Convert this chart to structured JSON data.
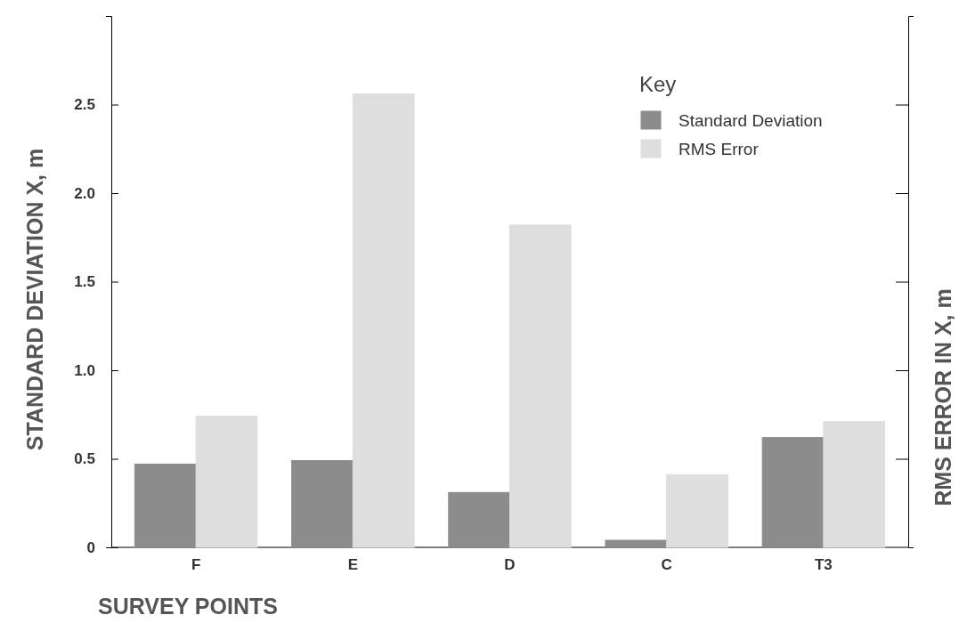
{
  "chart_data": {
    "type": "bar",
    "xlabel": "SURVEY POINTS",
    "ylabel": "STANDARD DEVIATION X, m",
    "y2label": "RMS ERROR IN X, m",
    "legend_title": "Key",
    "legend": "top right",
    "categories": [
      "F",
      "E",
      "D",
      "C",
      "T3"
    ],
    "series": [
      {
        "name": "Standard Deviation",
        "color": "#8c8c8c",
        "values": [
          0.47,
          0.49,
          0.31,
          0.04,
          0.62
        ]
      },
      {
        "name": "RMS Error",
        "color": "#dedede",
        "values": [
          0.74,
          2.56,
          1.82,
          0.41,
          0.71
        ]
      }
    ],
    "ylim": [
      0,
      3
    ],
    "yticks": [
      0,
      0.5,
      {
        "value": 1,
        "label": "1.0"
      },
      1.5,
      {
        "value": 2,
        "label": "2.0"
      },
      2.5
    ],
    "grid": false
  }
}
